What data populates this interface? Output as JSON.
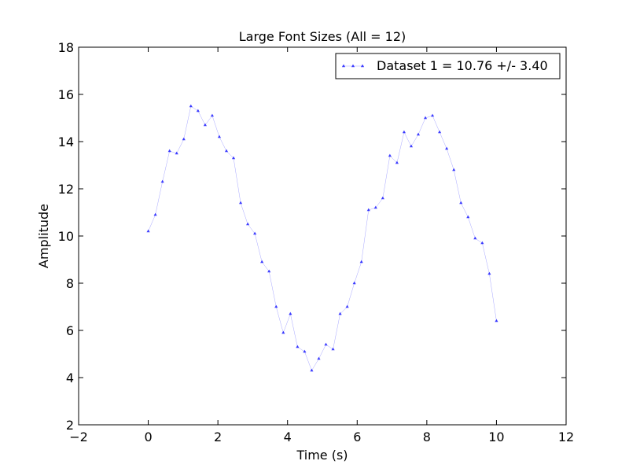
{
  "chart_data": {
    "type": "line",
    "title": "Large Font Sizes (All = 12)",
    "xlabel": "Time (s)",
    "ylabel": "Amplitude",
    "xlim": [
      -2,
      12
    ],
    "ylim": [
      2,
      18
    ],
    "xticks": [
      -2,
      0,
      2,
      4,
      6,
      8,
      10,
      12
    ],
    "yticks": [
      2,
      4,
      6,
      8,
      10,
      12,
      14,
      16,
      18
    ],
    "xtick_labels": [
      "−2",
      "0",
      "2",
      "4",
      "6",
      "8",
      "10",
      "12"
    ],
    "ytick_labels": [
      "2",
      "4",
      "6",
      "8",
      "10",
      "12",
      "14",
      "16",
      "18"
    ],
    "grid": false,
    "legend_position": "top-right",
    "series": [
      {
        "name": "Dataset 1 = 10.76 +/- 3.40",
        "color": "#0000ff",
        "marker": "triangle-up",
        "x": [
          0.0,
          0.204,
          0.408,
          0.612,
          0.816,
          1.02,
          1.224,
          1.429,
          1.633,
          1.837,
          2.041,
          2.245,
          2.449,
          2.653,
          2.857,
          3.061,
          3.265,
          3.469,
          3.673,
          3.878,
          4.082,
          4.286,
          4.49,
          4.694,
          4.898,
          5.102,
          5.306,
          5.51,
          5.714,
          5.918,
          6.122,
          6.327,
          6.531,
          6.735,
          6.939,
          7.143,
          7.347,
          7.551,
          7.755,
          7.959,
          8.163,
          8.367,
          8.571,
          8.776,
          8.98,
          9.184,
          9.388,
          9.592,
          9.796,
          10.0
        ],
        "y": [
          10.2,
          10.9,
          12.3,
          13.6,
          13.5,
          14.1,
          15.5,
          15.3,
          14.7,
          15.1,
          14.2,
          13.6,
          13.3,
          11.4,
          10.5,
          10.1,
          8.9,
          8.5,
          7.0,
          5.9,
          6.7,
          5.3,
          5.1,
          4.3,
          4.8,
          5.4,
          5.2,
          6.7,
          7.0,
          8.0,
          8.9,
          11.1,
          11.2,
          11.6,
          13.4,
          13.1,
          14.4,
          13.8,
          14.3,
          15.0,
          15.1,
          14.4,
          13.7,
          12.8,
          11.4,
          10.8,
          9.9,
          9.7,
          8.4,
          6.4
        ]
      }
    ]
  }
}
